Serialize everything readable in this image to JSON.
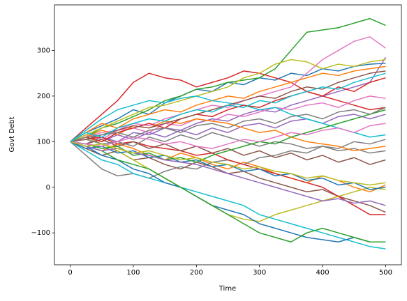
{
  "chart_data": {
    "type": "line",
    "xlabel": "Time",
    "ylabel": "Govt Debt",
    "x": [
      0,
      25,
      50,
      75,
      100,
      125,
      150,
      175,
      200,
      225,
      250,
      275,
      300,
      325,
      350,
      375,
      400,
      425,
      450,
      475,
      500
    ],
    "series": [
      {
        "color": "#1f77b4",
        "values": [
          100,
          120,
          135,
          150,
          170,
          160,
          185,
          200,
          215,
          210,
          230,
          225,
          240,
          235,
          250,
          245,
          260,
          255,
          265,
          270,
          272
        ]
      },
      {
        "color": "#ff7f0e",
        "values": [
          100,
          90,
          80,
          95,
          85,
          70,
          60,
          75,
          65,
          50,
          40,
          55,
          45,
          30,
          20,
          10,
          25,
          15,
          0,
          -10,
          5
        ]
      },
      {
        "color": "#2ca02c",
        "values": [
          100,
          110,
          130,
          140,
          155,
          170,
          190,
          200,
          215,
          220,
          230,
          235,
          240,
          260,
          300,
          340,
          345,
          350,
          360,
          370,
          355
        ]
      },
      {
        "color": "#d62728",
        "values": [
          100,
          130,
          160,
          190,
          230,
          250,
          240,
          235,
          220,
          230,
          240,
          255,
          250,
          240,
          230,
          210,
          200,
          190,
          180,
          170,
          175
        ]
      },
      {
        "color": "#9467bd",
        "values": [
          100,
          95,
          110,
          100,
          120,
          115,
          130,
          125,
          140,
          150,
          145,
          160,
          170,
          165,
          180,
          190,
          200,
          210,
          220,
          230,
          285
        ]
      },
      {
        "color": "#8c564b",
        "values": [
          100,
          85,
          70,
          80,
          60,
          65,
          50,
          40,
          55,
          45,
          30,
          35,
          20,
          10,
          0,
          -10,
          -5,
          -20,
          -30,
          -40,
          -55
        ]
      },
      {
        "color": "#e377c2",
        "values": [
          100,
          115,
          105,
          125,
          140,
          135,
          150,
          160,
          170,
          180,
          175,
          190,
          200,
          210,
          220,
          250,
          280,
          300,
          320,
          330,
          305
        ]
      },
      {
        "color": "#7f7f7f",
        "values": [
          100,
          70,
          40,
          25,
          30,
          20,
          35,
          45,
          40,
          55,
          60,
          50,
          65,
          70,
          80,
          75,
          90,
          85,
          100,
          95,
          105
        ]
      },
      {
        "color": "#bcbd22",
        "values": [
          100,
          110,
          95,
          80,
          60,
          40,
          20,
          0,
          -20,
          -40,
          -60,
          -70,
          -75,
          -60,
          -50,
          -40,
          -30,
          -20,
          -10,
          0,
          -5
        ]
      },
      {
        "color": "#17becf",
        "values": [
          100,
          80,
          60,
          50,
          30,
          20,
          10,
          0,
          -10,
          -20,
          -30,
          -40,
          -60,
          -70,
          -80,
          -90,
          -100,
          -110,
          -120,
          -130,
          -135
        ]
      },
      {
        "color": "#1f77b4",
        "values": [
          100,
          90,
          70,
          60,
          40,
          30,
          10,
          0,
          -20,
          -40,
          -50,
          -60,
          -80,
          -90,
          -100,
          -110,
          -115,
          -120,
          -110,
          -120,
          -120
        ]
      },
      {
        "color": "#ff7f0e",
        "values": [
          100,
          120,
          140,
          130,
          150,
          160,
          170,
          165,
          180,
          190,
          200,
          195,
          210,
          220,
          230,
          240,
          250,
          245,
          255,
          260,
          265
        ]
      },
      {
        "color": "#2ca02c",
        "values": [
          100,
          90,
          80,
          60,
          50,
          40,
          20,
          0,
          -20,
          -40,
          -60,
          -80,
          -100,
          -110,
          -120,
          -100,
          -90,
          -100,
          -110,
          -120,
          -120
        ]
      },
      {
        "color": "#d62728",
        "values": [
          100,
          105,
          110,
          95,
          100,
          90,
          85,
          80,
          70,
          75,
          60,
          50,
          40,
          30,
          20,
          10,
          0,
          -20,
          -40,
          -60,
          -60
        ]
      },
      {
        "color": "#9467bd",
        "values": [
          100,
          110,
          100,
          115,
          105,
          120,
          110,
          125,
          115,
          130,
          120,
          135,
          140,
          130,
          145,
          150,
          140,
          155,
          160,
          150,
          160
        ]
      },
      {
        "color": "#8c564b",
        "values": [
          100,
          95,
          105,
          90,
          100,
          85,
          95,
          80,
          90,
          75,
          85,
          70,
          80,
          65,
          75,
          60,
          70,
          55,
          65,
          50,
          60
        ]
      },
      {
        "color": "#e377c2",
        "values": [
          100,
          110,
          120,
          125,
          130,
          120,
          140,
          135,
          150,
          145,
          160,
          155,
          165,
          175,
          170,
          180,
          185,
          175,
          190,
          200,
          195
        ]
      },
      {
        "color": "#7f7f7f",
        "values": [
          100,
          105,
          95,
          100,
          90,
          110,
          100,
          115,
          105,
          120,
          110,
          100,
          90,
          100,
          95,
          85,
          90,
          80,
          85,
          75,
          80
        ]
      },
      {
        "color": "#bcbd22",
        "values": [
          100,
          115,
          130,
          145,
          160,
          175,
          180,
          190,
          200,
          210,
          220,
          240,
          250,
          270,
          280,
          275,
          260,
          270,
          265,
          275,
          280
        ]
      },
      {
        "color": "#17becf",
        "values": [
          100,
          125,
          150,
          170,
          180,
          190,
          185,
          195,
          200,
          190,
          185,
          180,
          170,
          175,
          160,
          150,
          140,
          130,
          120,
          110,
          115
        ]
      },
      {
        "color": "#1f77b4",
        "values": [
          100,
          85,
          90,
          75,
          80,
          65,
          70,
          55,
          60,
          45,
          50,
          35,
          40,
          25,
          30,
          15,
          20,
          5,
          10,
          -5,
          0
        ]
      },
      {
        "color": "#ff7f0e",
        "values": [
          100,
          110,
          125,
          115,
          135,
          130,
          145,
          140,
          150,
          145,
          140,
          130,
          120,
          125,
          110,
          100,
          95,
          90,
          80,
          85,
          90
        ]
      },
      {
        "color": "#2ca02c",
        "values": [
          100,
          95,
          85,
          90,
          70,
          75,
          60,
          65,
          55,
          70,
          80,
          90,
          100,
          95,
          110,
          120,
          130,
          140,
          150,
          160,
          170
        ]
      },
      {
        "color": "#d62728",
        "values": [
          100,
          110,
          100,
          120,
          130,
          140,
          130,
          150,
          160,
          155,
          170,
          180,
          175,
          190,
          200,
          210,
          200,
          220,
          210,
          230,
          240
        ]
      },
      {
        "color": "#9467bd",
        "values": [
          100,
          90,
          80,
          85,
          75,
          70,
          60,
          55,
          50,
          40,
          30,
          20,
          10,
          0,
          -10,
          -20,
          -30,
          -25,
          -35,
          -30,
          -40
        ]
      },
      {
        "color": "#8c564b",
        "values": [
          100,
          105,
          115,
          125,
          135,
          130,
          140,
          150,
          160,
          170,
          180,
          190,
          200,
          195,
          210,
          220,
          215,
          230,
          240,
          250,
          255
        ]
      },
      {
        "color": "#e377c2",
        "values": [
          100,
          95,
          90,
          100,
          110,
          105,
          95,
          100,
          90,
          85,
          95,
          105,
          100,
          110,
          120,
          115,
          125,
          130,
          120,
          135,
          140
        ]
      },
      {
        "color": "#7f7f7f",
        "values": [
          100,
          110,
          115,
          120,
          110,
          125,
          130,
          120,
          135,
          140,
          130,
          145,
          150,
          140,
          155,
          160,
          150,
          165,
          170,
          160,
          175
        ]
      },
      {
        "color": "#bcbd22",
        "values": [
          100,
          90,
          95,
          85,
          75,
          80,
          70,
          60,
          65,
          55,
          50,
          40,
          45,
          35,
          30,
          20,
          25,
          15,
          10,
          5,
          10
        ]
      },
      {
        "color": "#17becf",
        "values": [
          100,
          120,
          110,
          130,
          140,
          150,
          145,
          160,
          170,
          165,
          180,
          175,
          190,
          185,
          200,
          210,
          220,
          215,
          230,
          240,
          250
        ]
      }
    ],
    "xlim": [
      -25,
      525
    ],
    "ylim": [
      -170,
      400
    ],
    "xticks": [
      0,
      100,
      200,
      300,
      400,
      500
    ],
    "yticks": [
      {
        "value": -100,
        "label": "−100"
      },
      0,
      100,
      200,
      300
    ]
  }
}
